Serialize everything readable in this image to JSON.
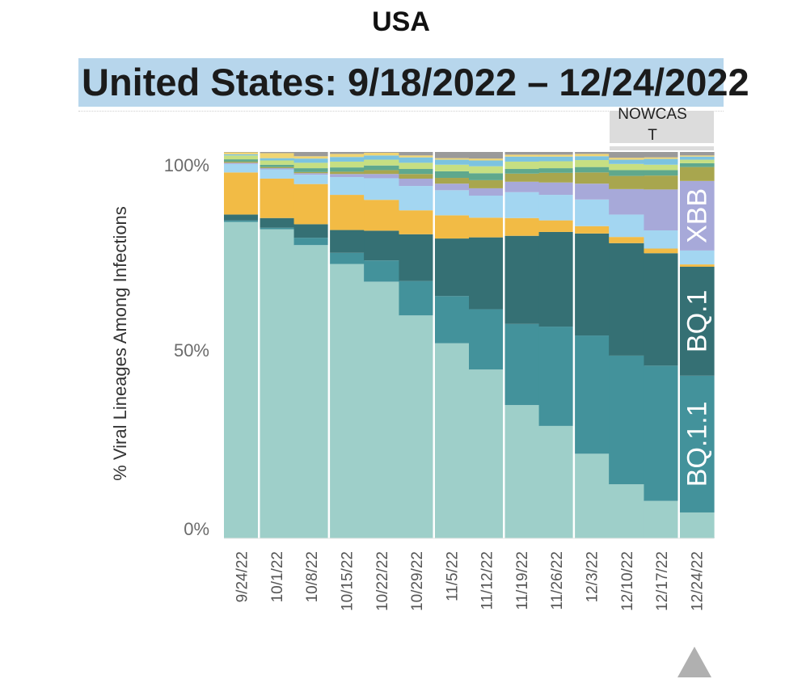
{
  "page_title": "USA",
  "banner": {
    "text": "United States: 9/18/2022 – 12/24/2022"
  },
  "nowcast": {
    "label_line1": "NOWCAS",
    "label_line2": "T"
  },
  "colors": {
    "banner_bg": "#b7d6ec",
    "nowcast_bg": "#dcdcdc",
    "arrow": "#b0b0b0",
    "divider": "#ffffff"
  },
  "chart_data": {
    "type": "area",
    "stacking": "percent",
    "title": "",
    "xlabel": "",
    "ylabel": "% Viral Lineages Among Infections",
    "ylim": [
      0,
      100
    ],
    "yticks": [
      "0%",
      "50%",
      "100%"
    ],
    "categories": [
      "9/24/22",
      "10/1/22",
      "10/8/22",
      "10/15/22",
      "10/22/22",
      "10/29/22",
      "11/5/22",
      "11/12/22",
      "11/19/22",
      "11/26/22",
      "12/3/22",
      "12/10/22",
      "12/17/22",
      "12/24/22"
    ],
    "nowcast_weeks": [
      "12/10/22",
      "12/17/22",
      "12/24/22"
    ],
    "series": [
      {
        "name": "",
        "color": "#9ecfc9",
        "values": [
          81.9,
          80.0,
          75.9,
          71.0,
          66.5,
          57.7,
          50.5,
          43.7,
          34.5,
          29.1,
          21.9,
          14.0,
          9.7,
          6.7
        ]
      },
      {
        "name": "BQ.1.1",
        "color": "#43929b",
        "values": [
          0.4,
          0.4,
          1.9,
          2.9,
          5.5,
          8.9,
          12.2,
          15.6,
          21.0,
          25.7,
          30.6,
          33.3,
          35.0,
          35.4
        ]
      },
      {
        "name": "BQ.1",
        "color": "#357074",
        "values": [
          1.5,
          2.5,
          3.5,
          5.9,
          7.7,
          12.1,
          14.9,
          18.6,
          22.8,
          24.5,
          26.4,
          29.1,
          29.1,
          28.2
        ]
      },
      {
        "name": "",
        "color": "#f2bb45",
        "values": [
          10.9,
          10.2,
          10.4,
          9.1,
          8.0,
          6.2,
          6.0,
          5.1,
          4.6,
          3.0,
          1.9,
          1.6,
          1.2,
          0.6
        ]
      },
      {
        "name": "",
        "color": "#a3d6f1",
        "values": [
          2.2,
          2.4,
          2.4,
          4.6,
          5.6,
          6.3,
          6.5,
          5.7,
          6.7,
          6.6,
          6.9,
          5.8,
          4.7,
          3.6
        ]
      },
      {
        "name": "XBB",
        "color": "#a7a9d9",
        "values": [
          0.3,
          0.3,
          0.4,
          0.8,
          1.1,
          1.9,
          1.7,
          1.9,
          2.7,
          3.2,
          4.1,
          6.6,
          10.6,
          18.0
        ]
      },
      {
        "name": "",
        "color": "#a8a64e",
        "values": [
          0.3,
          0.3,
          0.3,
          0.6,
          1.0,
          1.2,
          1.5,
          2.1,
          2.1,
          2.5,
          2.9,
          3.4,
          3.6,
          3.6
        ]
      },
      {
        "name": "",
        "color": "#5fa88d",
        "values": [
          0.6,
          0.6,
          1.0,
          1.1,
          1.2,
          1.3,
          1.7,
          1.8,
          1.2,
          1.2,
          1.4,
          1.5,
          1.4,
          1.0
        ]
      },
      {
        "name": "",
        "color": "#c6df82",
        "values": [
          1.0,
          1.1,
          1.4,
          1.5,
          1.5,
          1.6,
          1.7,
          1.8,
          1.9,
          1.8,
          1.8,
          1.6,
          1.4,
          0.9
        ]
      },
      {
        "name": "",
        "color": "#7cc3e0",
        "values": [
          0.3,
          0.6,
          1.1,
          1.2,
          1.1,
          1.4,
          1.3,
          1.5,
          1.3,
          1.2,
          1.0,
          1.1,
          1.5,
          0.8
        ]
      },
      {
        "name": "",
        "color": "#f0d573",
        "values": [
          0.5,
          1.3,
          0.6,
          0.8,
          0.7,
          0.5,
          0.4,
          0.5,
          0.5,
          0.5,
          0.6,
          0.5,
          0.4,
          0.3
        ]
      },
      {
        "name": "",
        "color": "#9a9a9a",
        "values": [
          0.1,
          0.3,
          1.1,
          0.5,
          0.2,
          0.9,
          1.6,
          1.7,
          0.7,
          0.7,
          0.5,
          1.5,
          1.4,
          0.9
        ]
      }
    ],
    "dividers_after": [
      "9/24/22",
      "10/8/22",
      "10/29/22",
      "11/12/22",
      "11/26/22",
      "12/17/22"
    ],
    "series_labels": [
      "XBB",
      "BQ.1",
      "BQ.1.1"
    ]
  }
}
